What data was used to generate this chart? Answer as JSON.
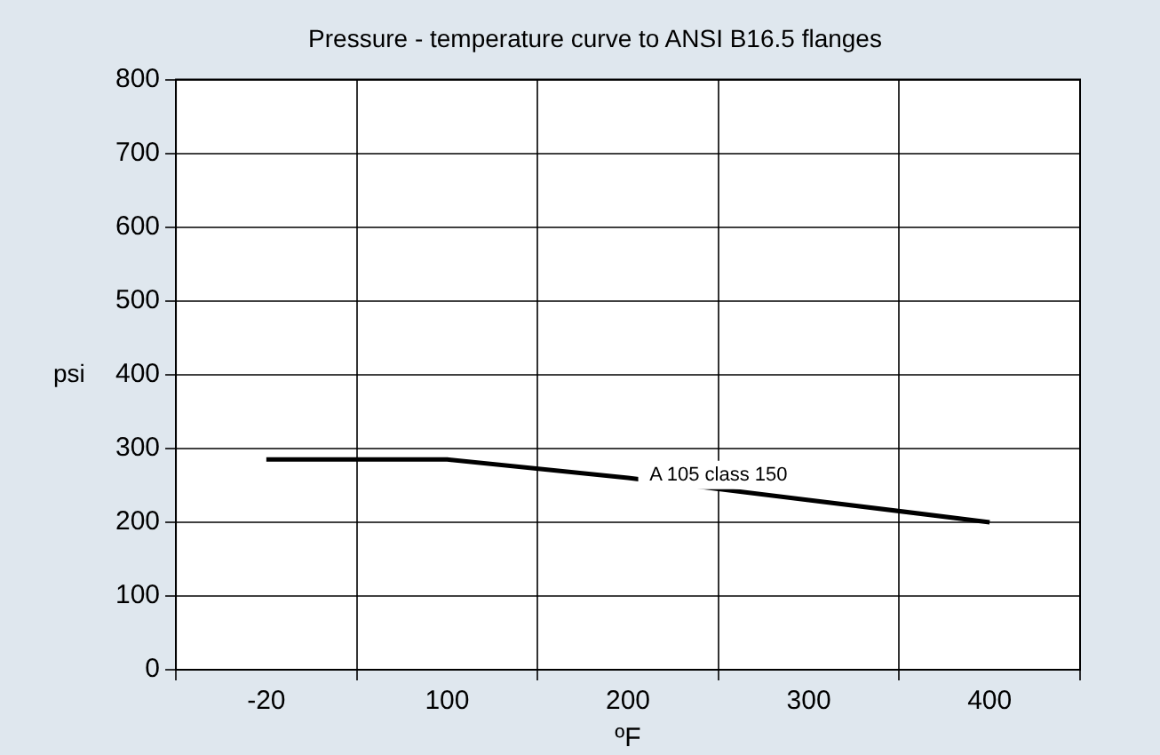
{
  "chart_data": {
    "type": "line",
    "title": "Pressure - temperature curve to ANSI B16.5 flanges",
    "xlabel": "ºF",
    "ylabel": "psi",
    "categories": [
      "-20",
      "100",
      "200",
      "300",
      "400"
    ],
    "series": [
      {
        "color": "#000000",
        "values": [
          285,
          285,
          260,
          230,
          200
        ]
      }
    ],
    "ylim": [
      0,
      800
    ],
    "yticks": [
      0,
      100,
      200,
      300,
      400,
      500,
      600,
      700,
      800
    ],
    "annotations": [
      "A 105 class 150"
    ],
    "grid": true,
    "legend": false,
    "marker": "none",
    "line_style": "solid"
  }
}
